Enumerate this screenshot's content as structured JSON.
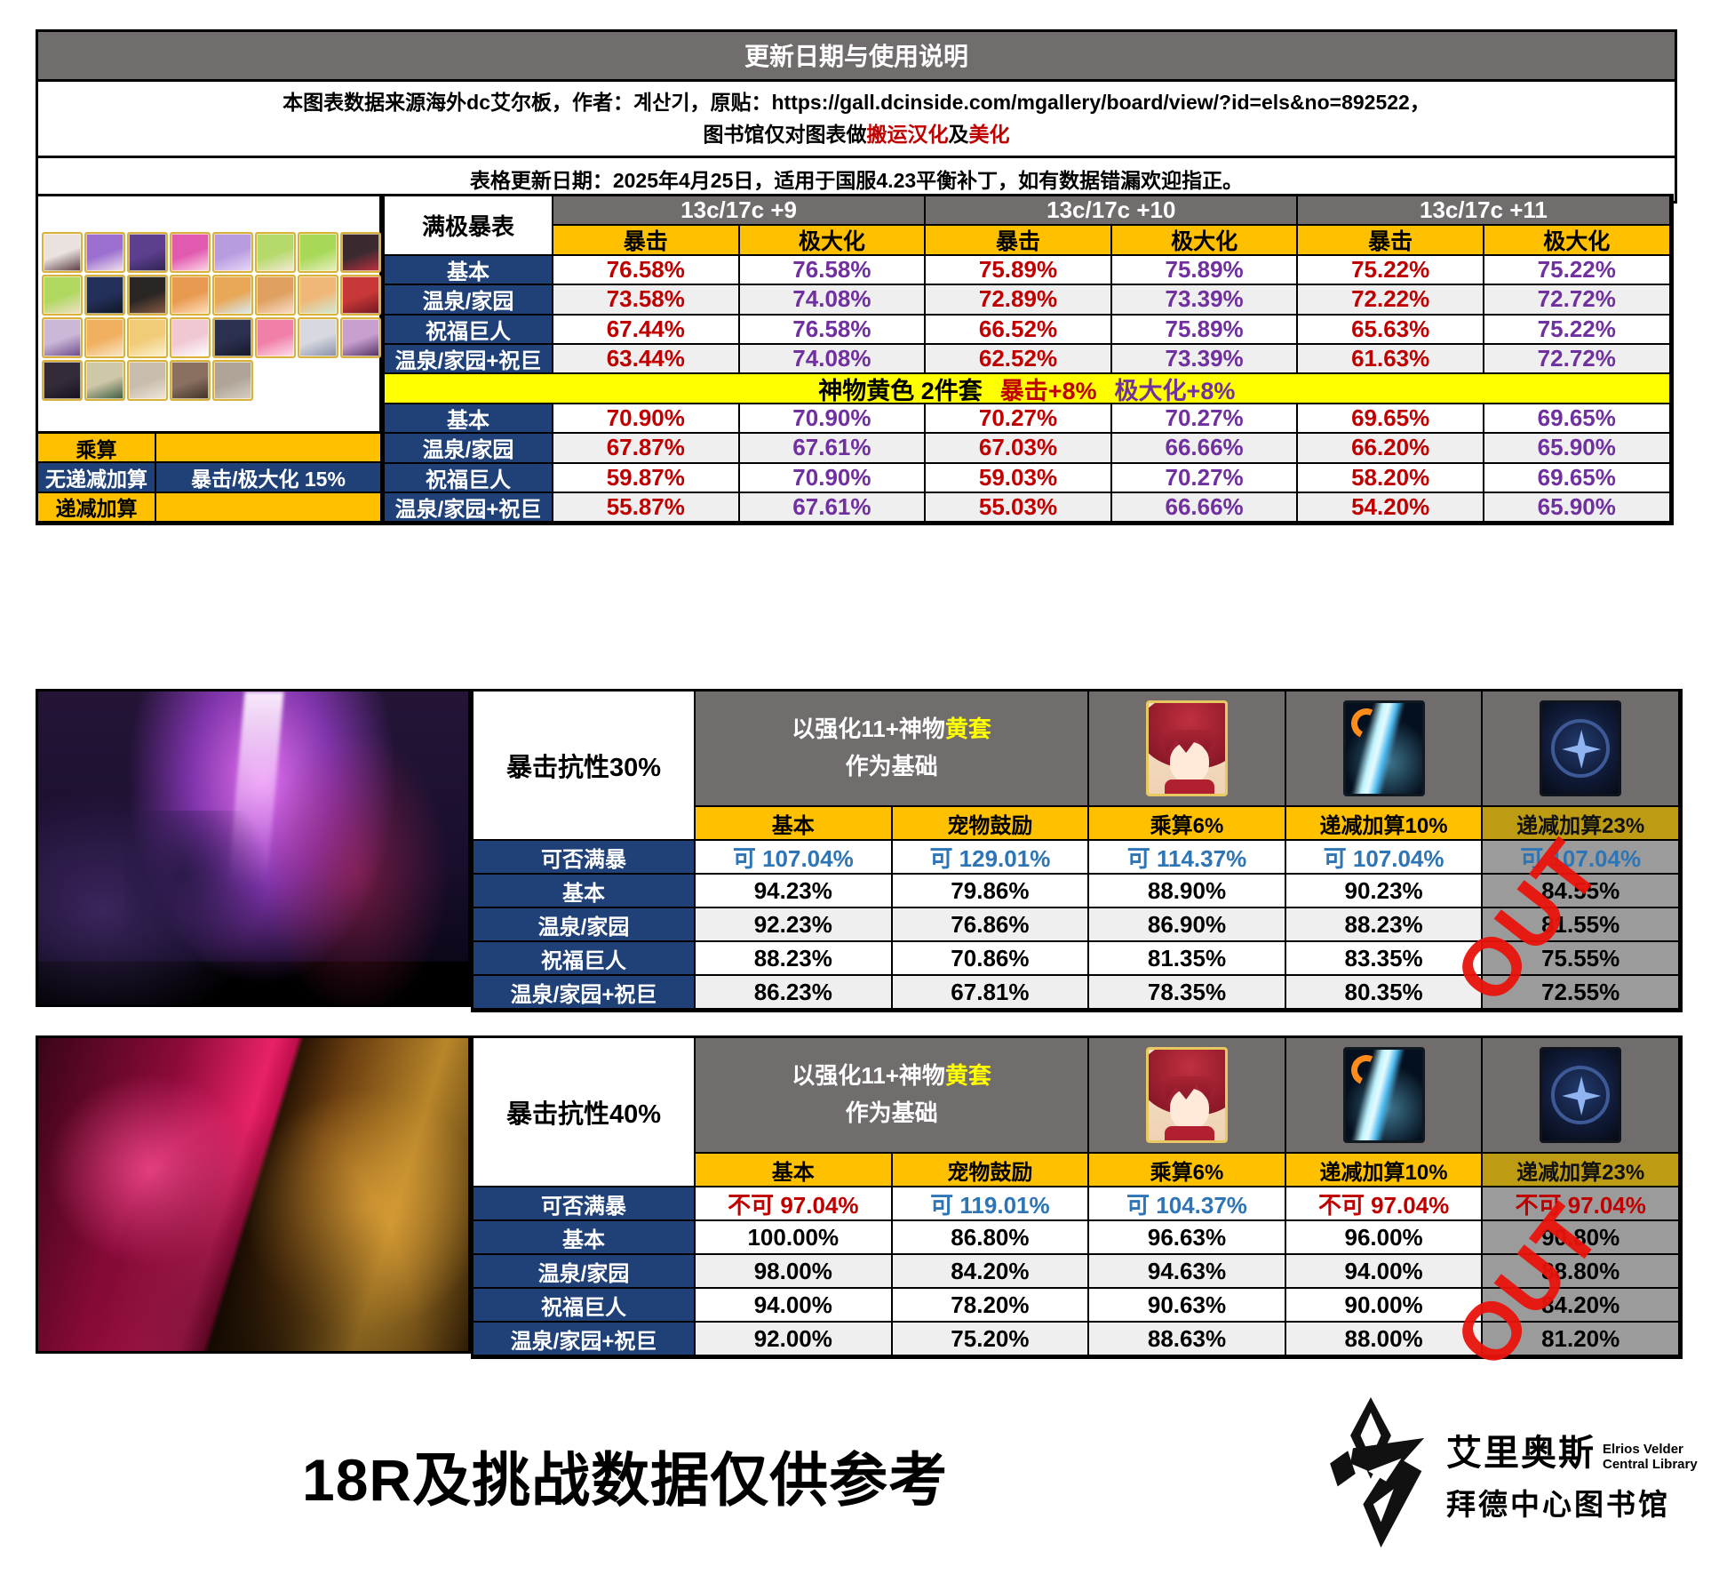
{
  "header": {
    "title": "更新日期与使用说明",
    "source": {
      "prefix": "本图表数据来源海外dc艾尔板，作者：",
      "author": "계산기",
      "mid": "，原贴：",
      "url": "https://gall.dcinside.com/mgallery/board/view/?id=els&no=892522，",
      "line2_prefix": "图书馆仅对图表做",
      "red1": "搬运汉化",
      "mid2": "及",
      "red2": "美化"
    },
    "update_line": "表格更新日期：2025年4月25日，适用于国服4.23平衡补丁，如有数据错漏欢迎指正。"
  },
  "chart_data": [
    {
      "type": "table",
      "title": "满极暴表",
      "corner_label": "满极暴表",
      "groups": [
        "13c/17c +9",
        "13c/17c +10",
        "13c/17c +11"
      ],
      "sub_crit": "暴击",
      "sub_max": "极大化",
      "row_labels": [
        "基本",
        "温泉/家园",
        "祝福巨人",
        "温泉/家园+祝巨"
      ],
      "top_rows": [
        [
          "76.58%",
          "76.58%",
          "75.89%",
          "75.89%",
          "75.22%",
          "75.22%"
        ],
        [
          "73.58%",
          "74.08%",
          "72.89%",
          "73.39%",
          "72.22%",
          "72.72%"
        ],
        [
          "67.44%",
          "76.58%",
          "66.52%",
          "75.89%",
          "65.63%",
          "75.22%"
        ],
        [
          "63.44%",
          "74.08%",
          "62.52%",
          "73.39%",
          "61.63%",
          "72.72%"
        ]
      ],
      "divider": {
        "black": "神物黄色 2件套",
        "red": "暴击+8%",
        "purple": "极大化+8%"
      },
      "bottom_rows": [
        [
          "70.90%",
          "70.90%",
          "70.27%",
          "70.27%",
          "69.65%",
          "69.65%"
        ],
        [
          "67.87%",
          "67.61%",
          "67.03%",
          "66.66%",
          "66.20%",
          "65.90%"
        ],
        [
          "59.87%",
          "70.90%",
          "59.03%",
          "70.27%",
          "58.20%",
          "69.65%"
        ],
        [
          "55.87%",
          "67.61%",
          "55.03%",
          "66.66%",
          "54.20%",
          "65.90%"
        ]
      ],
      "legend": {
        "multiply": "乘算",
        "flat_add": "无递减加算",
        "flat_add_value": "暴击/极大化 15%",
        "diminishing_add": "递减加算"
      }
    },
    {
      "type": "table",
      "title": "暴击抗性30%",
      "label": "暴击抗性30%",
      "base1": "以强化11+神物",
      "base_yellow": "黄套",
      "base2": "作为基础",
      "cols": [
        "基本",
        "宠物鼓励",
        "乘算6%",
        "递减加算10%",
        "递减加算23%"
      ],
      "row_labels": [
        "可否满暴",
        "基本",
        "温泉/家园",
        "祝福巨人",
        "温泉/家园+祝巨"
      ],
      "cap": [
        "可 107.04%",
        "可 129.01%",
        "可 114.37%",
        "可 107.04%",
        "可 107.04%"
      ],
      "rows": [
        [
          "94.23%",
          "79.86%",
          "88.90%",
          "90.23%",
          "84.55%"
        ],
        [
          "92.23%",
          "76.86%",
          "86.90%",
          "88.23%",
          "81.55%"
        ],
        [
          "88.23%",
          "70.86%",
          "81.35%",
          "83.35%",
          "75.55%"
        ],
        [
          "86.23%",
          "67.81%",
          "78.35%",
          "80.35%",
          "72.55%"
        ]
      ],
      "out": "OUT"
    },
    {
      "type": "table",
      "title": "暴击抗性40%",
      "label": "暴击抗性40%",
      "base1": "以强化11+神物",
      "base_yellow": "黄套",
      "base2": "作为基础",
      "cols": [
        "基本",
        "宠物鼓励",
        "乘算6%",
        "递减加算10%",
        "递减加算23%"
      ],
      "row_labels": [
        "可否满暴",
        "基本",
        "温泉/家园",
        "祝福巨人",
        "温泉/家园+祝巨"
      ],
      "cap": [
        "不可 97.04%",
        "可 119.01%",
        "可 104.37%",
        "不可 97.04%",
        "不可 97.04%"
      ],
      "rows": [
        [
          "100.00%",
          "86.80%",
          "96.63%",
          "96.00%",
          "90.80%"
        ],
        [
          "98.00%",
          "84.20%",
          "94.63%",
          "94.00%",
          "88.80%"
        ],
        [
          "94.00%",
          "78.20%",
          "90.63%",
          "90.00%",
          "84.20%"
        ],
        [
          "92.00%",
          "75.20%",
          "88.63%",
          "88.00%",
          "81.20%"
        ]
      ],
      "out": "OUT"
    }
  ],
  "footer": {
    "note": "18R及挑战数据仅供参考",
    "logo": {
      "cn_top": "艾里奥斯",
      "en1": "Elrios Velder",
      "en2": "Central Library",
      "cn_bottom": "拜德中心图书馆"
    }
  },
  "colors": {
    "header_gray": "#716d6d",
    "accent_orange": "#ffc000",
    "navy": "#1f4178",
    "crit_red": "#c00000",
    "maximize_purple": "#7030a0",
    "cap_blue": "#2e75b6",
    "highlight_yellow": "#ffff00",
    "zebra_gray": "#efefef",
    "out_red": "#e8140c",
    "disabled_gray": "#9b9b9b",
    "disabled_gold": "#bd9b13"
  },
  "portrait_colors": [
    [
      "#e9e2df",
      "#57383f"
    ],
    [
      "#9a6fd0",
      "#f3e3ee"
    ],
    [
      "#5d3f90",
      "#2e2450"
    ],
    [
      "#e05ab0",
      "#ffd7e8"
    ],
    [
      "#b89ce0",
      "#e8d8f8"
    ],
    [
      "#b5d96a",
      "#f5ead8"
    ],
    [
      "#a8d858",
      "#e8f0c0"
    ],
    [
      "#3a2a30",
      "#c03040"
    ],
    [
      "#b0d860",
      "#f0e0c8"
    ],
    [
      "#23305c",
      "#101622"
    ],
    [
      "#2a2624",
      "#8a5c44"
    ],
    [
      "#e89a50",
      "#ffe0c0"
    ],
    [
      "#e8a858",
      "#d8ecf4"
    ],
    [
      "#e0a060",
      "#f8e0cc"
    ],
    [
      "#f0b878",
      "#d0ead8"
    ],
    [
      "#c83838",
      "#701820"
    ],
    [
      "#cbb8d8",
      "#6a4a8a"
    ],
    [
      "#f0b060",
      "#fbe7c8"
    ],
    [
      "#f0cc78",
      "#fdf2d0"
    ],
    [
      "#f0c8d4",
      "#ffffff"
    ],
    [
      "#2c3050",
      "#141828"
    ],
    [
      "#f080a8",
      "#ffe0ec"
    ],
    [
      "#d8d8e0",
      "#8890a8"
    ],
    [
      "#c8a0d0",
      "#503060"
    ],
    [
      "#332c38",
      "#181020"
    ],
    [
      "#cfc8a8",
      "#3a5a40"
    ],
    [
      "#c8bcac",
      "#efe8dc"
    ],
    [
      "#8a7060",
      "#403028"
    ],
    [
      "#b0a498",
      "#d8d0c4"
    ]
  ]
}
